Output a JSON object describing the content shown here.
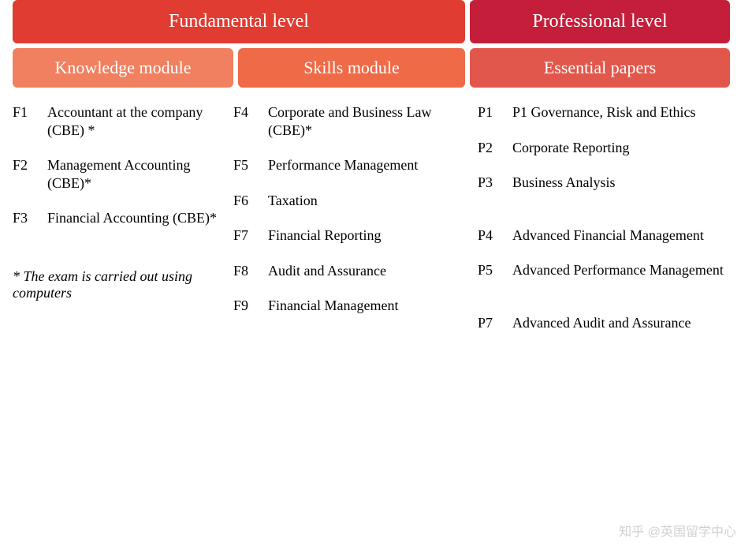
{
  "colors": {
    "level_fundamental": "#e03c31",
    "level_professional": "#c41e3a",
    "module_knowledge": "#f08060",
    "module_skills": "#ef6a47",
    "module_essential": "#e2574c",
    "text_white": "#ffffff"
  },
  "layout": {
    "col1_width": 280,
    "col2_width": 310,
    "col3_width": 330,
    "level_fundamental_width": 574,
    "level_professional_width": 330
  },
  "levels": {
    "fundamental": "Fundamental level",
    "professional": "Professional level"
  },
  "modules": {
    "knowledge": "Knowledge module",
    "skills": "Skills module",
    "essential": "Essential papers"
  },
  "columns": {
    "knowledge": [
      {
        "code": "F1",
        "name": "Accountant at the company (CBE) *"
      },
      {
        "code": "F2",
        "name": "Management Accounting (CBE)*"
      },
      {
        "code": "F3",
        "name": "Financial Accounting (CBE)*"
      }
    ],
    "skills": [
      {
        "code": "F4",
        "name": "Corporate and Business Law (CBE)*"
      },
      {
        "code": "F5",
        "name": "Performance Management"
      },
      {
        "code": "F6",
        "name": "Taxation"
      },
      {
        "code": "F7",
        "name": "Financial Reporting"
      },
      {
        "code": "F8",
        "name": "Audit and Assurance"
      },
      {
        "code": "F9",
        "name": "Financial Management"
      }
    ],
    "essential": [
      {
        "code": "P1",
        "name": "P1 Governance, Risk and Ethics"
      },
      {
        "code": "P2",
        "name": "Corporate Reporting"
      },
      {
        "code": "P3",
        "name": "Business Analysis"
      },
      {
        "code": "",
        "name": ""
      },
      {
        "code": "P4",
        "name": "Advanced Financial Management"
      },
      {
        "code": "P5",
        "name": "Advanced Performance Management"
      },
      {
        "code": "",
        "name": ""
      },
      {
        "code": "P7",
        "name": "Advanced Audit and Assurance"
      }
    ]
  },
  "footnote": "* The exam is carried out using computers",
  "watermark": "知乎 @英国留学中心"
}
